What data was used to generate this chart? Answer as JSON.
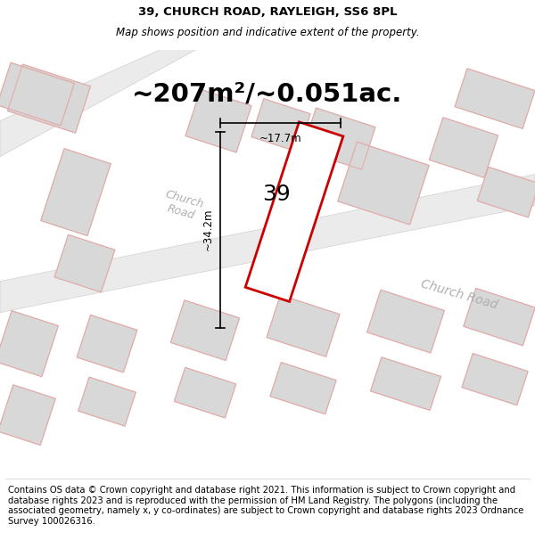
{
  "title": "39, CHURCH ROAD, RAYLEIGH, SS6 8PL",
  "subtitle": "Map shows position and indicative extent of the property.",
  "area_text": "~207m²/~0.051ac.",
  "label_number": "39",
  "dim_height": "~34.2m",
  "dim_width": "~17.7m",
  "bg_color": "#ffffff",
  "map_bg": "#f8f8f8",
  "road_fill": "#e8e8e8",
  "building_fill": "#d8d8d8",
  "building_edge": "#c0c0c0",
  "highlight_fill": "#ffffff",
  "highlight_edge": "#cc0000",
  "pink_color": "#e8aaaa",
  "road_label_color": "#b0b0b0",
  "dim_line_color": "#000000",
  "footer_text": "Contains OS data © Crown copyright and database right 2021. This information is subject to Crown copyright and database rights 2023 and is reproduced with the permission of HM Land Registry. The polygons (including the associated geometry, namely x, y co-ordinates) are subject to Crown copyright and database rights 2023 Ordnance Survey 100026316.",
  "title_fontsize": 9.5,
  "subtitle_fontsize": 8.5,
  "area_fontsize": 21,
  "label_fontsize": 18,
  "dim_fontsize": 8.5,
  "road_label_fontsize": 9,
  "footer_fontsize": 7.2,
  "map_rot": -18
}
